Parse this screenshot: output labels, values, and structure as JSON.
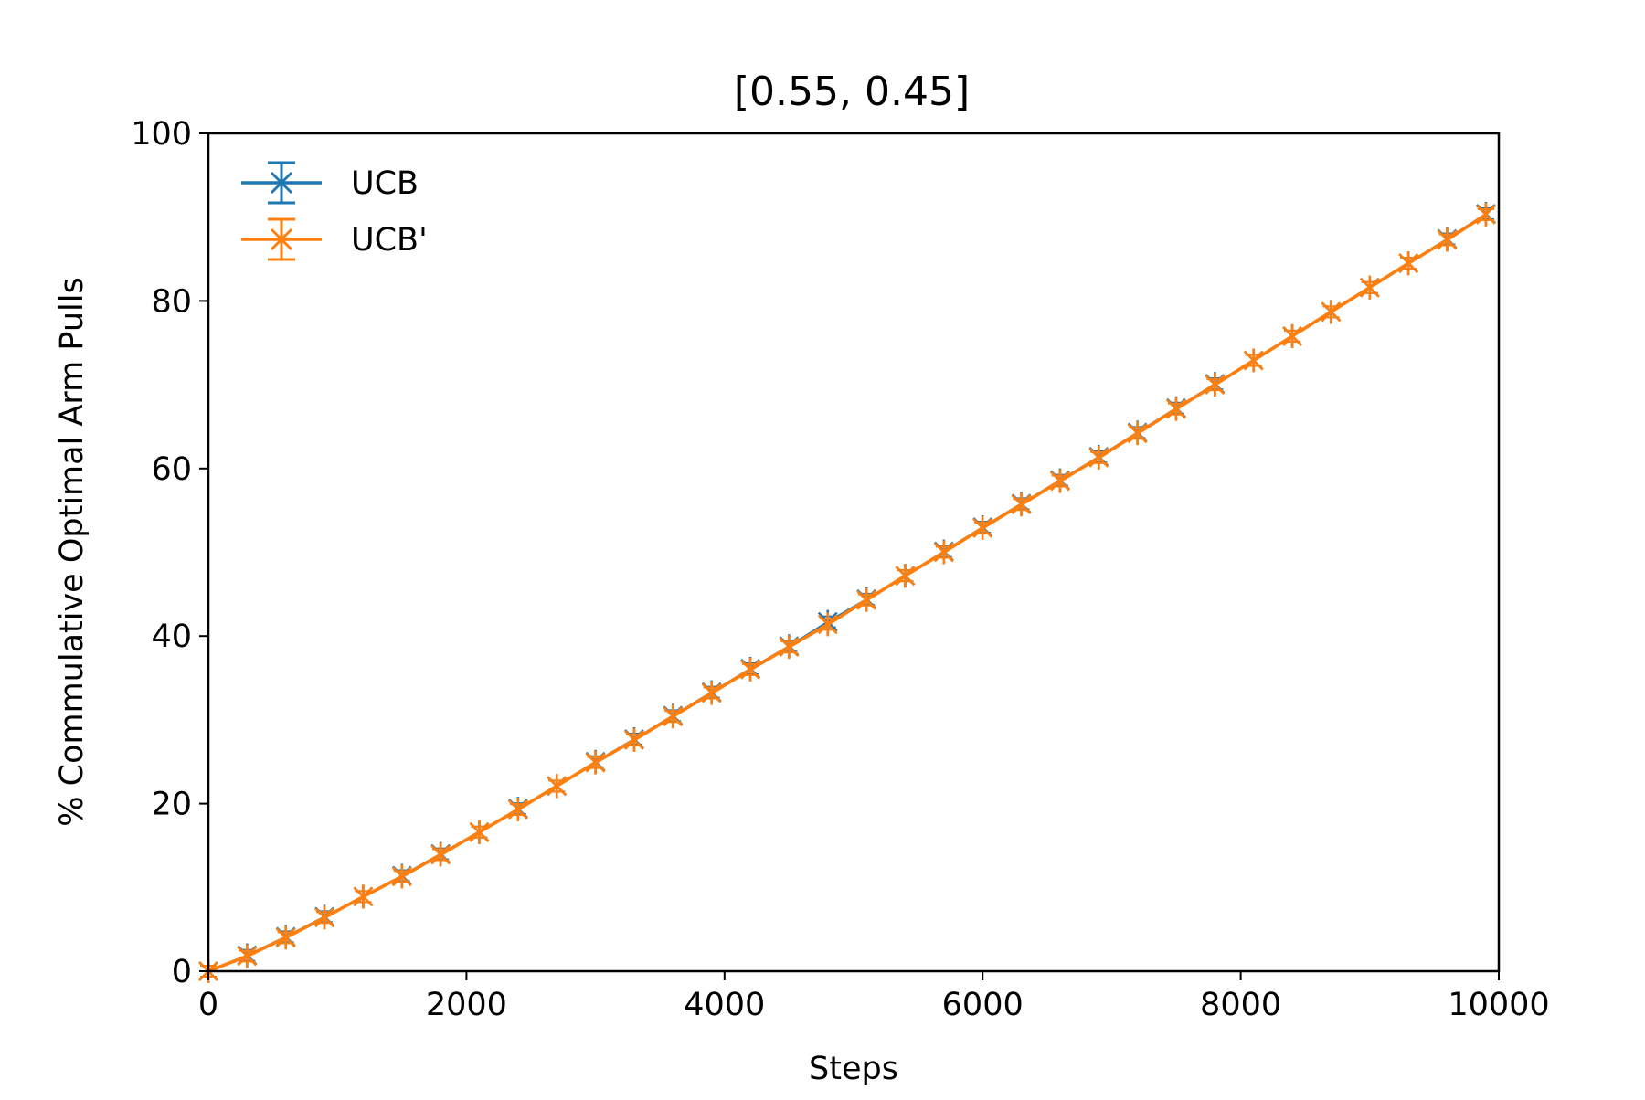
{
  "chart_data": {
    "type": "line",
    "title": "[0.55, 0.45]",
    "xlabel": "Steps",
    "ylabel": "% Commulative Optimal Arm Pulls",
    "xlim": [
      0,
      10000
    ],
    "ylim": [
      0,
      100
    ],
    "xticks": [
      0,
      2000,
      4000,
      6000,
      8000,
      10000
    ],
    "yticks": [
      0,
      20,
      40,
      60,
      80,
      100
    ],
    "grid": false,
    "legend_position": "top-left",
    "marker": "x-star",
    "x": [
      0,
      300,
      600,
      900,
      1200,
      1500,
      1800,
      2100,
      2400,
      2700,
      3000,
      3300,
      3600,
      3900,
      4200,
      4500,
      4800,
      5100,
      5400,
      5700,
      6000,
      6300,
      6600,
      6900,
      7200,
      7500,
      7800,
      8100,
      8400,
      8700,
      9000,
      9300,
      9600,
      9900
    ],
    "series": [
      {
        "name": "UCB",
        "color": "#1f77b4",
        "values": [
          0.0,
          1.9,
          4.1,
          6.5,
          8.9,
          11.4,
          14.0,
          16.6,
          19.4,
          22.1,
          25.0,
          27.7,
          30.5,
          33.3,
          36.1,
          38.8,
          41.7,
          44.4,
          47.2,
          50.1,
          53.0,
          55.8,
          58.6,
          61.4,
          64.3,
          67.2,
          70.1,
          72.9,
          75.8,
          78.7,
          81.6,
          84.5,
          87.4,
          90.4
        ]
      },
      {
        "name": "UCB'",
        "color": "#ff7f0e",
        "values": [
          0.0,
          1.8,
          4.0,
          6.4,
          8.9,
          11.3,
          13.9,
          16.6,
          19.3,
          22.1,
          24.9,
          27.6,
          30.4,
          33.2,
          36.0,
          38.7,
          41.4,
          44.3,
          47.2,
          50.0,
          52.9,
          55.7,
          58.5,
          61.3,
          64.2,
          67.1,
          70.0,
          72.9,
          75.8,
          78.7,
          81.6,
          84.5,
          87.3,
          90.3
        ]
      }
    ]
  }
}
